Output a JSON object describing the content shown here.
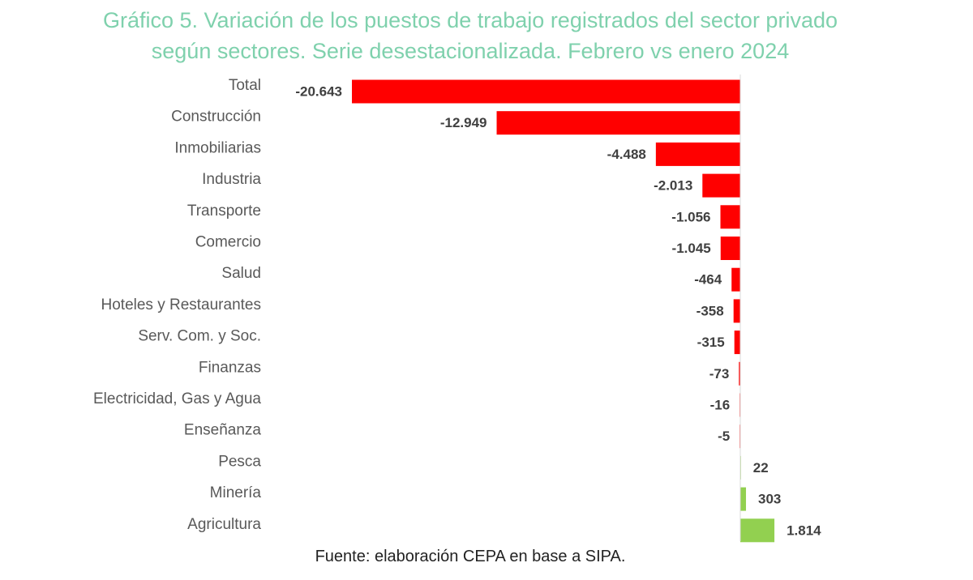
{
  "title_line1": "Gráfico 5. Variación de los puestos de trabajo registrados del sector privado",
  "title_line2": "según sectores. Serie desestacionalizada. Febrero vs enero 2024",
  "source": "Fuente: elaboración CEPA en base a SIPA.",
  "colors": {
    "title": "#7fd1ad",
    "negative": "#ff0000",
    "positive": "#92d050",
    "category_text": "#595959",
    "value_text": "#404040",
    "axis": "#d9d9d9"
  },
  "chart_data": {
    "type": "bar",
    "orientation": "horizontal",
    "categories": [
      "Total",
      "Construcción",
      "Inmobiliarias",
      "Industria",
      "Transporte",
      "Comercio",
      "Salud",
      "Hoteles y Restaurantes",
      "Serv. Com. y Soc.",
      "Finanzas",
      "Electricidad, Gas y Agua",
      "Enseñanza",
      "Pesca",
      "Minería",
      "Agricultura"
    ],
    "values": [
      -20643,
      -12949,
      -4488,
      -2013,
      -1056,
      -1045,
      -464,
      -358,
      -315,
      -73,
      -16,
      -5,
      22,
      303,
      1814
    ],
    "value_labels": [
      "-20.643",
      "-12.949",
      "-4.488",
      "-2.013",
      "-1.056",
      "-1.045",
      "-464",
      "-358",
      "-315",
      "-73",
      "-16",
      "-5",
      "22",
      "303",
      "1.814"
    ],
    "xlim": [
      -20643,
      1814
    ],
    "grid": false,
    "legend": "none"
  }
}
